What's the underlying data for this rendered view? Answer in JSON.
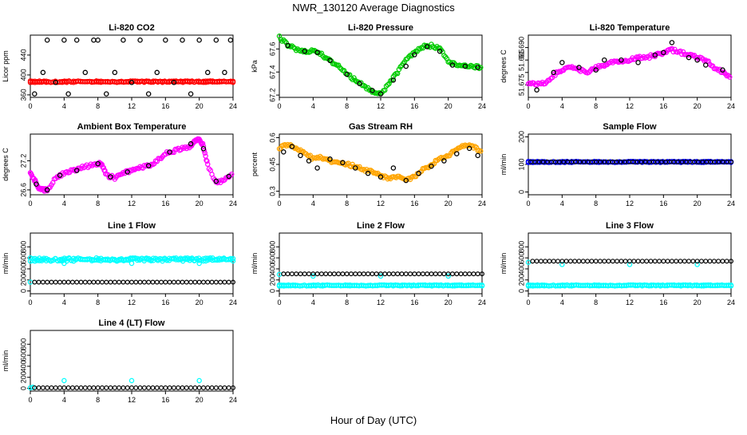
{
  "figure": {
    "title": "NWR_130120  Average Diagnostics",
    "xlabel": "Hour of Day (UTC)"
  },
  "chart_data": [
    {
      "type": "scatter",
      "title": "Li-820 CO2",
      "ylabel": "Licor ppm",
      "xlim": [
        0,
        24
      ],
      "ylim": [
        355,
        480
      ],
      "xticks": [
        0,
        4,
        8,
        12,
        16,
        20,
        24
      ],
      "yticks": [
        360,
        400,
        440
      ],
      "series": [
        {
          "color": "#ff0000",
          "kind": "band",
          "x": [
            0,
            24
          ],
          "y": [
            385,
            388
          ]
        },
        {
          "color": "#000000",
          "x": [
            0.5,
            1.5,
            2,
            3,
            4,
            4.5,
            5.5,
            6.5,
            7.5,
            8,
            9,
            10,
            11,
            12,
            13,
            14,
            15,
            16,
            17,
            18,
            19,
            20,
            21,
            22,
            23,
            23.7
          ],
          "y": [
            362,
            405,
            470,
            385,
            470,
            362,
            470,
            405,
            470,
            470,
            362,
            405,
            470,
            385,
            470,
            362,
            405,
            470,
            385,
            470,
            362,
            470,
            405,
            470,
            405,
            470
          ]
        }
      ]
    },
    {
      "type": "scatter",
      "title": "Li-820 Pressure",
      "ylabel": "kPa",
      "xlim": [
        0,
        24
      ],
      "ylim": [
        67.18,
        67.72
      ],
      "xticks": [
        0,
        4,
        8,
        12,
        16,
        20,
        24
      ],
      "yticks": [
        67.2,
        67.4,
        67.6
      ],
      "series": [
        {
          "color": "#00cc00",
          "x": [
            0,
            1,
            2,
            3,
            4,
            5,
            6,
            7,
            8,
            9,
            10,
            11,
            12,
            13,
            14,
            15,
            16,
            17,
            18,
            19,
            20,
            21,
            22,
            23,
            24
          ],
          "y": [
            67.7,
            67.63,
            67.6,
            67.58,
            67.58,
            67.55,
            67.5,
            67.45,
            67.38,
            67.33,
            67.28,
            67.23,
            67.21,
            67.3,
            67.4,
            67.5,
            67.57,
            67.62,
            67.63,
            67.6,
            67.5,
            67.45,
            67.45,
            67.45,
            67.44
          ]
        },
        {
          "color": "#000000",
          "x": [
            1,
            3,
            4.5,
            6,
            8,
            9.5,
            11,
            12,
            13.5,
            15,
            16,
            17.5,
            19,
            20.5,
            22,
            23.5
          ],
          "y": [
            67.63,
            67.58,
            67.57,
            67.5,
            67.38,
            67.3,
            67.24,
            67.21,
            67.33,
            67.45,
            67.55,
            67.62,
            67.58,
            67.46,
            67.45,
            67.44
          ]
        }
      ]
    },
    {
      "type": "scatter",
      "title": "Li-820 Temperature",
      "ylabel": "degrees C",
      "xlim": [
        0,
        24
      ],
      "ylim": [
        51.67,
        51.695
      ],
      "xticks": [
        0,
        4,
        8,
        12,
        16,
        20,
        24
      ],
      "yticks": [
        51.675,
        51.68,
        51.685,
        51.69
      ],
      "ytick_labels": [
        "51.675",
        "",
        "51.685",
        "51.690"
      ],
      "series": [
        {
          "color": "#ff00ff",
          "x": [
            0,
            1,
            2,
            3,
            4,
            5,
            6,
            7,
            8,
            9,
            10,
            11,
            12,
            13,
            14,
            15,
            16,
            17,
            18,
            19,
            20,
            21,
            22,
            23,
            24
          ],
          "y": [
            51.676,
            51.675,
            51.676,
            51.679,
            51.681,
            51.682,
            51.681,
            51.68,
            51.682,
            51.683,
            51.684,
            51.684,
            51.685,
            51.686,
            51.686,
            51.687,
            51.688,
            51.689,
            51.688,
            51.687,
            51.686,
            51.685,
            51.682,
            51.68,
            51.678
          ]
        },
        {
          "color": "#000000",
          "x": [
            1,
            3,
            4,
            6,
            8,
            9,
            11,
            13,
            15,
            16,
            17,
            19,
            20,
            21,
            23
          ],
          "y": [
            51.673,
            51.68,
            51.684,
            51.682,
            51.681,
            51.685,
            51.685,
            51.684,
            51.687,
            51.688,
            51.692,
            51.686,
            51.685,
            51.683,
            51.681
          ]
        }
      ]
    },
    {
      "type": "scatter",
      "title": "Ambient Box Temperature",
      "ylabel": "degrees C",
      "xlim": [
        0,
        24
      ],
      "ylim": [
        26.5,
        27.75
      ],
      "xticks": [
        0,
        4,
        8,
        12,
        16,
        20,
        24
      ],
      "yticks": [
        26.6,
        27.2
      ],
      "series": [
        {
          "color": "#ff00ff",
          "x": [
            0,
            0.5,
            1,
            1.5,
            2,
            3,
            4,
            5,
            6,
            7,
            8,
            8.5,
            9,
            10,
            11,
            12,
            13,
            14,
            15,
            16,
            17,
            18,
            19,
            19.5,
            20,
            20.5,
            21,
            22,
            23,
            24
          ],
          "y": [
            26.95,
            26.8,
            26.65,
            26.6,
            26.6,
            26.85,
            26.95,
            27.0,
            27.05,
            27.1,
            27.15,
            27.12,
            26.9,
            26.85,
            26.95,
            27.0,
            27.05,
            27.1,
            27.2,
            27.35,
            27.4,
            27.45,
            27.5,
            27.6,
            27.65,
            27.5,
            27.1,
            26.75,
            26.8,
            26.95
          ]
        },
        {
          "color": "#000000",
          "x": [
            0.7,
            2,
            3.5,
            5.5,
            8,
            9.5,
            11.5,
            14,
            16.5,
            19,
            20.5,
            22,
            23.5
          ],
          "y": [
            26.72,
            26.6,
            26.9,
            27.0,
            27.14,
            26.87,
            26.97,
            27.1,
            27.38,
            27.55,
            27.45,
            26.78,
            26.88
          ]
        }
      ]
    },
    {
      "type": "scatter",
      "title": "Gas Stream RH",
      "ylabel": "percent",
      "xlim": [
        0,
        24
      ],
      "ylim": [
        0.28,
        0.62
      ],
      "xticks": [
        0,
        4,
        8,
        12,
        16,
        20,
        24
      ],
      "yticks": [
        0.3,
        0.45,
        0.6
      ],
      "series": [
        {
          "color": "#ffa500",
          "x": [
            0,
            1,
            2,
            3,
            4,
            5,
            6,
            7,
            8,
            9,
            10,
            11,
            12,
            13,
            14,
            15,
            16,
            17,
            18,
            19,
            20,
            21,
            22,
            23,
            24
          ],
          "y": [
            0.54,
            0.56,
            0.54,
            0.52,
            0.48,
            0.49,
            0.47,
            0.46,
            0.45,
            0.44,
            0.42,
            0.41,
            0.39,
            0.37,
            0.38,
            0.36,
            0.38,
            0.42,
            0.45,
            0.48,
            0.5,
            0.53,
            0.56,
            0.55,
            0.52
          ]
        },
        {
          "color": "#000000",
          "x": [
            0.5,
            1.5,
            2.5,
            3.5,
            4.5,
            6,
            7.5,
            9,
            10.5,
            12,
            13.5,
            15,
            16.5,
            18,
            19.5,
            21,
            22.5,
            23.5
          ],
          "y": [
            0.52,
            0.55,
            0.5,
            0.47,
            0.43,
            0.48,
            0.46,
            0.43,
            0.4,
            0.38,
            0.43,
            0.36,
            0.4,
            0.44,
            0.47,
            0.51,
            0.54,
            0.5
          ]
        }
      ]
    },
    {
      "type": "scatter",
      "title": "Sample Flow",
      "ylabel": "ml/min",
      "xlim": [
        0,
        24
      ],
      "ylim": [
        -10,
        210
      ],
      "xticks": [
        0,
        4,
        8,
        12,
        16,
        20,
        24
      ],
      "yticks": [
        0,
        100,
        200
      ],
      "series": [
        {
          "color": "#0000ff",
          "kind": "band",
          "x": [
            0,
            24
          ],
          "y": [
            107,
            111
          ]
        },
        {
          "color": "#000000",
          "kind": "dense",
          "x": [
            0.3,
            24
          ],
          "y": [
            109,
            109
          ],
          "count": 50
        }
      ]
    },
    {
      "type": "scatter",
      "title": "Line 1 Flow",
      "ylabel": "ml/min",
      "xlim": [
        0,
        24
      ],
      "ylim": [
        -50,
        1050
      ],
      "xticks": [
        0,
        4,
        8,
        12,
        16,
        20,
        24
      ],
      "yticks": [
        0,
        200,
        400,
        600,
        800
      ],
      "series": [
        {
          "color": "#00ffff",
          "kind": "band",
          "x": [
            0,
            24
          ],
          "y": [
            540,
            600
          ]
        },
        {
          "color": "#00ffff",
          "x": [
            0,
            4,
            12,
            20
          ],
          "y": [
            160,
            500,
            500,
            500
          ]
        },
        {
          "color": "#000000",
          "kind": "dense",
          "x": [
            0.5,
            24
          ],
          "y": [
            160,
            160
          ],
          "count": 48
        }
      ]
    },
    {
      "type": "scatter",
      "title": "Line 2 Flow",
      "ylabel": "ml/min",
      "xlim": [
        0,
        24
      ],
      "ylim": [
        -50,
        1050
      ],
      "xticks": [
        0,
        4,
        8,
        12,
        16,
        20,
        24
      ],
      "yticks": [
        0,
        200,
        400,
        600,
        800
      ],
      "series": [
        {
          "color": "#00ffff",
          "kind": "band",
          "x": [
            0,
            24
          ],
          "y": [
            90,
            110
          ]
        },
        {
          "color": "#00ffff",
          "x": [
            0,
            4,
            12,
            20
          ],
          "y": [
            300,
            270,
            270,
            270
          ]
        },
        {
          "color": "#000000",
          "kind": "dense",
          "x": [
            0.5,
            24
          ],
          "y": [
            310,
            310
          ],
          "count": 48
        }
      ]
    },
    {
      "type": "scatter",
      "title": "Line 3 Flow",
      "ylabel": "ml/min",
      "xlim": [
        0,
        24
      ],
      "ylim": [
        -50,
        1050
      ],
      "xticks": [
        0,
        4,
        8,
        12,
        16,
        20,
        24
      ],
      "yticks": [
        0,
        200,
        400,
        600,
        800
      ],
      "series": [
        {
          "color": "#00ffff",
          "kind": "band",
          "x": [
            0,
            24
          ],
          "y": [
            90,
            110
          ]
        },
        {
          "color": "#00ffff",
          "x": [
            0,
            4,
            12,
            20
          ],
          "y": [
            520,
            480,
            480,
            480
          ]
        },
        {
          "color": "#000000",
          "kind": "dense",
          "x": [
            0.5,
            24
          ],
          "y": [
            540,
            540
          ],
          "count": 48
        }
      ]
    },
    {
      "type": "scatter",
      "title": "Line 4 (LT) Flow",
      "ylabel": "ml/min",
      "xlim": [
        0,
        24
      ],
      "ylim": [
        -50,
        1050
      ],
      "xticks": [
        0,
        4,
        8,
        12,
        16,
        20,
        24
      ],
      "yticks": [
        0,
        200,
        400,
        600,
        800
      ],
      "series": [
        {
          "color": "#00ffff",
          "x": [
            0,
            4,
            12,
            20,
            0.3
          ],
          "y": [
            10,
            140,
            140,
            140,
            20
          ]
        },
        {
          "color": "#000000",
          "kind": "dense",
          "x": [
            0.5,
            24
          ],
          "y": [
            10,
            10
          ],
          "count": 48
        }
      ]
    }
  ]
}
